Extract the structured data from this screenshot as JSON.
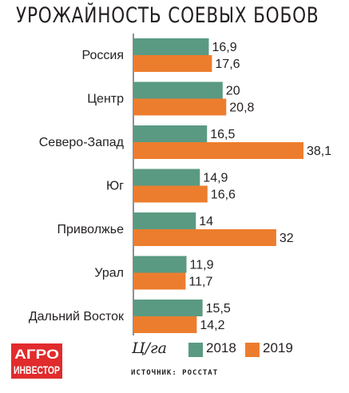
{
  "title": "УРОЖАЙНОСТЬ СОЕВЫХ БОБОВ",
  "legend": {
    "unit": "Ц/га",
    "items": [
      {
        "label": "2018",
        "color": "#5a9a82"
      },
      {
        "label": "2019",
        "color": "#ed7d2e"
      }
    ]
  },
  "source": "ИСТОЧНИК: РОССТАТ",
  "logo": {
    "line1": "АГРО",
    "line2": "ИНВЕСТОР",
    "color": "#e12b2d"
  },
  "chart_data": {
    "type": "bar",
    "orientation": "horizontal",
    "title": "УРОЖАЙНОСТЬ СОЕВЫХ БОБОВ",
    "unit": "Ц/га",
    "categories": [
      "Россия",
      "Центр",
      "Северо-Запад",
      "Юг",
      "Приволжье",
      "Урал",
      "Дальний Восток"
    ],
    "series": [
      {
        "name": "2018",
        "color": "#5a9a82",
        "values": [
          16.9,
          20,
          16.5,
          14.9,
          14,
          11.9,
          15.5
        ],
        "labels": [
          "16,9",
          "20",
          "16,5",
          "14,9",
          "14",
          "11,9",
          "15,5"
        ]
      },
      {
        "name": "2019",
        "color": "#ed7d2e",
        "values": [
          17.6,
          20.8,
          38.1,
          16.6,
          32,
          11.7,
          14.2
        ],
        "labels": [
          "17,6",
          "20,8",
          "38,1",
          "16,6",
          "32",
          "11,7",
          "14,2"
        ]
      }
    ],
    "xlim": [
      0,
      38.1
    ],
    "grid": false,
    "legend_position": "bottom"
  }
}
